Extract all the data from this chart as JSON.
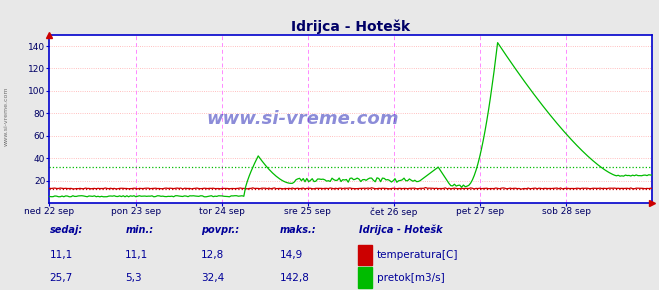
{
  "title": "Idrijca - Hotešk",
  "fig_bg_color": "#e8e8e8",
  "plot_bg_color": "#ffffff",
  "grid_color_h": "#ffaaaa",
  "grid_color_v_major": "#ff88ff",
  "temp_color": "#cc0000",
  "flow_color": "#00bb00",
  "border_color": "#0000cc",
  "ylim": [
    0,
    150
  ],
  "yticks": [
    20,
    40,
    60,
    80,
    100,
    120,
    140
  ],
  "num_points": 336,
  "days": [
    "ned 22 sep",
    "pon 23 sep",
    "tor 24 sep",
    "sre 25 sep",
    "čet 26 sep",
    "pet 27 sep",
    "sob 28 sep"
  ],
  "temp_avg": 12.8,
  "flow_avg": 32.4,
  "temp_min": 11.1,
  "temp_max": 14.9,
  "temp_current": 11.1,
  "flow_min": 5.3,
  "flow_max": 142.8,
  "flow_current": 25.7,
  "watermark": "www.si-vreme.com",
  "legend_title": "Idrijca - Hotešk",
  "legend_temp": "temperatura[C]",
  "legend_flow": "pretok[m3/s]",
  "label_sedaj": "sedaj:",
  "label_min": "min.:",
  "label_povpr": "povpr.:",
  "label_maks": "maks.:"
}
